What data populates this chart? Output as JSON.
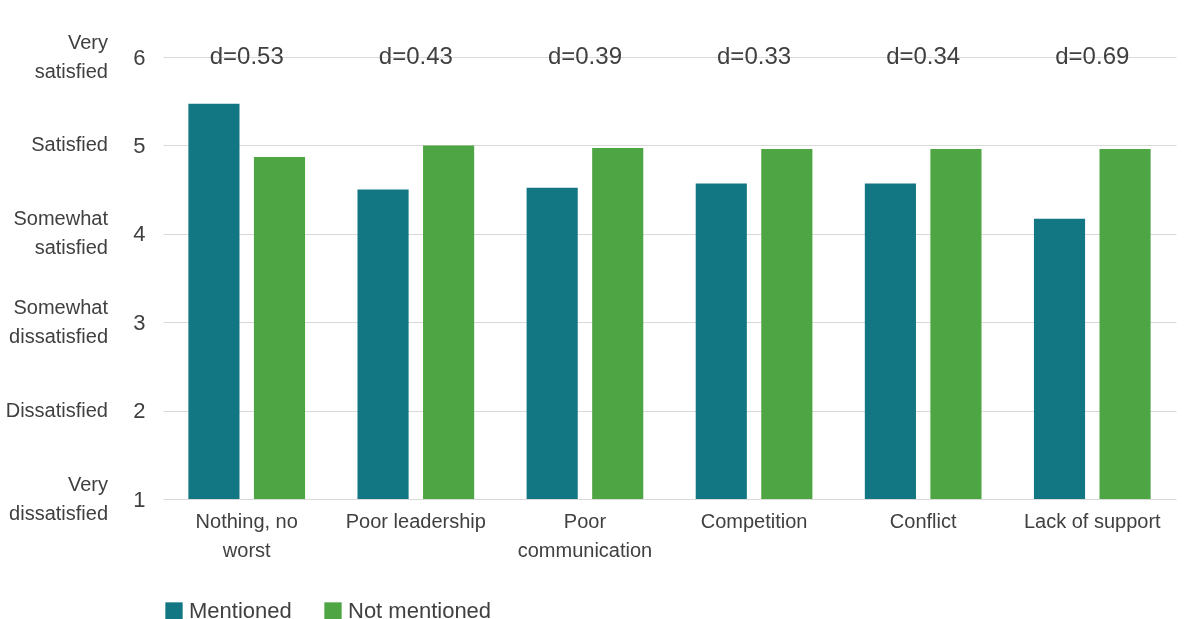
{
  "chart_data": {
    "type": "bar",
    "categories": [
      "Nothing, no worst",
      "Poor leadership",
      "Poor communication",
      "Competition",
      "Conflict",
      "Lack of support"
    ],
    "series": [
      {
        "name": "Mentioned",
        "color": "#127782",
        "values": [
          5.47,
          4.5,
          4.52,
          4.57,
          4.57,
          4.17
        ]
      },
      {
        "name": "Not mentioned",
        "color": "#4ea543",
        "values": [
          4.87,
          5.0,
          4.97,
          4.96,
          4.96,
          4.96
        ]
      }
    ],
    "ylim": [
      1,
      6
    ],
    "yticks": [
      1,
      2,
      3,
      4,
      5,
      6
    ],
    "annotations": [
      "d=0.53",
      "d=0.43",
      "d=0.39",
      "d=0.33",
      "d=0.34",
      "d=0.69",
      "Very dissatisfied",
      "Dissatisfied",
      "Somewhat dissatisfied",
      "Somewhat satisfied",
      "Satisfied",
      "Very satisfied"
    ],
    "grid": "y",
    "legend": "bottom"
  }
}
